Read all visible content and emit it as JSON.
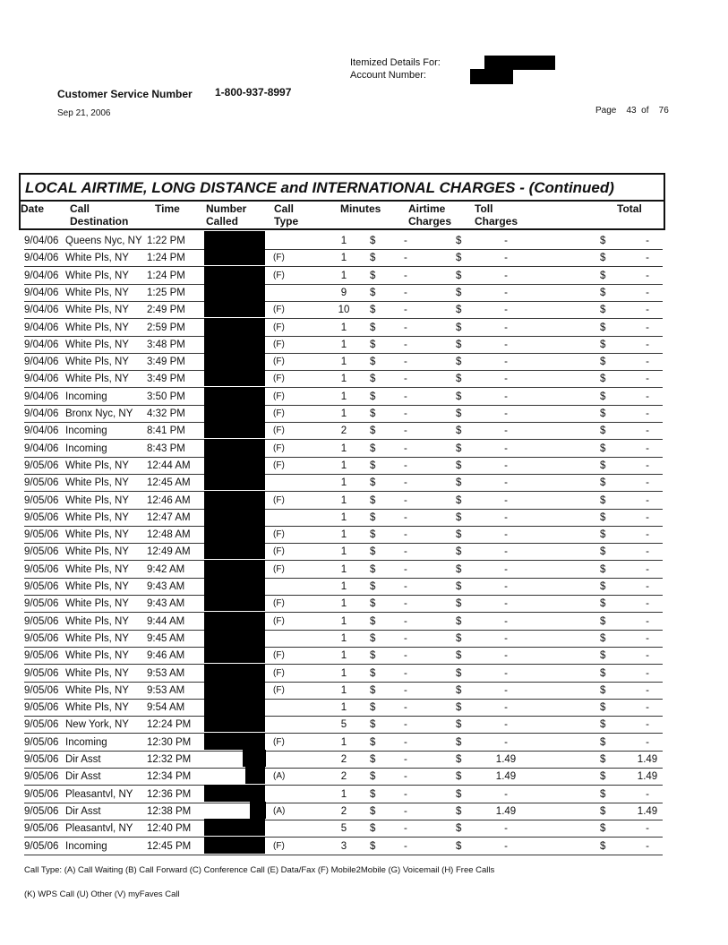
{
  "header": {
    "itemized_label": "Itemized Details For:",
    "account_label": "Account Number:",
    "cs_label": "Customer Service Number",
    "cs_number": "1-800-937-8997",
    "date": "Sep 21, 2006",
    "page_label": "Page",
    "page_num": "43",
    "of_label": "of",
    "page_total": "76"
  },
  "table": {
    "title": "LOCAL AIRTIME, LONG DISTANCE and INTERNATIONAL CHARGES  - (Continued)",
    "columns": {
      "date": "Date",
      "dest1": "Call",
      "dest2": "Destination",
      "time": "Time",
      "num1": "Number",
      "num2": "Called",
      "type1": "Call",
      "type2": "Type",
      "minutes": "Minutes",
      "air1": "Airtime",
      "air2": "Charges",
      "toll1": "Toll",
      "toll2": "Charges",
      "total": "Total"
    },
    "currency": "$",
    "dash": "-",
    "rows": [
      [
        "9/04/06",
        "Queens Nyc, NY",
        "1:22 PM",
        "",
        "1",
        "-",
        "-"
      ],
      [
        "9/04/06",
        "White Pls, NY",
        "1:24 PM",
        "(F)",
        "1",
        "-",
        "-"
      ],
      [
        "9/04/06",
        "White Pls, NY",
        "1:24 PM",
        "(F)",
        "1",
        "-",
        "-"
      ],
      [
        "9/04/06",
        "White Pls, NY",
        "1:25 PM",
        "",
        "9",
        "-",
        "-"
      ],
      [
        "9/04/06",
        "White Pls, NY",
        "2:49 PM",
        "(F)",
        "10",
        "-",
        "-"
      ],
      [
        "9/04/06",
        "White Pls, NY",
        "2:59 PM",
        "(F)",
        "1",
        "-",
        "-"
      ],
      [
        "9/04/06",
        "White Pls, NY",
        "3:48 PM",
        "(F)",
        "1",
        "-",
        "-"
      ],
      [
        "9/04/06",
        "White Pls, NY",
        "3:49 PM",
        "(F)",
        "1",
        "-",
        "-"
      ],
      [
        "9/04/06",
        "White Pls, NY",
        "3:49 PM",
        "(F)",
        "1",
        "-",
        "-"
      ],
      [
        "9/04/06",
        "Incoming",
        "3:50 PM",
        "(F)",
        "1",
        "-",
        "-"
      ],
      [
        "9/04/06",
        "Bronx Nyc, NY",
        "4:32 PM",
        "(F)",
        "1",
        "-",
        "-"
      ],
      [
        "9/04/06",
        "Incoming",
        "8:41 PM",
        "(F)",
        "2",
        "-",
        "-"
      ],
      [
        "9/04/06",
        "Incoming",
        "8:43 PM",
        "(F)",
        "1",
        "-",
        "-"
      ],
      [
        "9/05/06",
        "White Pls, NY",
        "12:44 AM",
        "(F)",
        "1",
        "-",
        "-"
      ],
      [
        "9/05/06",
        "White Pls, NY",
        "12:45 AM",
        "",
        "1",
        "-",
        "-"
      ],
      [
        "9/05/06",
        "White Pls, NY",
        "12:46 AM",
        "(F)",
        "1",
        "-",
        "-"
      ],
      [
        "9/05/06",
        "White Pls, NY",
        "12:47 AM",
        "",
        "1",
        "-",
        "-"
      ],
      [
        "9/05/06",
        "White Pls, NY",
        "12:48 AM",
        "(F)",
        "1",
        "-",
        "-"
      ],
      [
        "9/05/06",
        "White Pls, NY",
        "12:49 AM",
        "(F)",
        "1",
        "-",
        "-"
      ],
      [
        "9/05/06",
        "White Pls, NY",
        "9:42 AM",
        "(F)",
        "1",
        "-",
        "-"
      ],
      [
        "9/05/06",
        "White Pls, NY",
        "9:43 AM",
        "",
        "1",
        "-",
        "-"
      ],
      [
        "9/05/06",
        "White Pls, NY",
        "9:43 AM",
        "(F)",
        "1",
        "-",
        "-"
      ],
      [
        "9/05/06",
        "White Pls, NY",
        "9:44 AM",
        "(F)",
        "1",
        "-",
        "-"
      ],
      [
        "9/05/06",
        "White Pls, NY",
        "9:45 AM",
        "",
        "1",
        "-",
        "-"
      ],
      [
        "9/05/06",
        "White Pls, NY",
        "9:46 AM",
        "(F)",
        "1",
        "-",
        "-"
      ],
      [
        "9/05/06",
        "White Pls, NY",
        "9:53 AM",
        "(F)",
        "1",
        "-",
        "-"
      ],
      [
        "9/05/06",
        "White Pls, NY",
        "9:53 AM",
        "(F)",
        "1",
        "-",
        "-"
      ],
      [
        "9/05/06",
        "White Pls, NY",
        "9:54 AM",
        "",
        "1",
        "-",
        "-"
      ],
      [
        "9/05/06",
        "New York, NY",
        "12:24 PM",
        "",
        "5",
        "-",
        "-"
      ],
      [
        "9/05/06",
        "Incoming",
        "12:30 PM",
        "(F)",
        "1",
        "-",
        "-"
      ],
      [
        "9/05/06",
        "Dir Asst",
        "12:32 PM",
        "",
        "2",
        "1.49",
        "1.49"
      ],
      [
        "9/05/06",
        "Dir Asst",
        "12:34 PM",
        "(A)",
        "2",
        "1.49",
        "1.49"
      ],
      [
        "9/05/06",
        "Pleasantvl, NY",
        "12:36 PM",
        "",
        "1",
        "-",
        "-"
      ],
      [
        "9/05/06",
        "Dir Asst",
        "12:38 PM",
        "(A)",
        "2",
        "1.49",
        "1.49"
      ],
      [
        "9/05/06",
        "Pleasantvl, NY",
        "12:40 PM",
        "",
        "5",
        "-",
        "-"
      ],
      [
        "9/05/06",
        "Incoming",
        "12:45 PM",
        "(F)",
        "3",
        "-",
        "-"
      ]
    ]
  },
  "footer": {
    "legend1": "Call Type: (A) Call Waiting (B) Call Forward (C) Conference Call (E) Data/Fax (F) Mobile2Mobile (G) Voicemail (H) Free Calls",
    "legend2": "(K) WPS Call (U) Other (V) myFaves Call"
  }
}
